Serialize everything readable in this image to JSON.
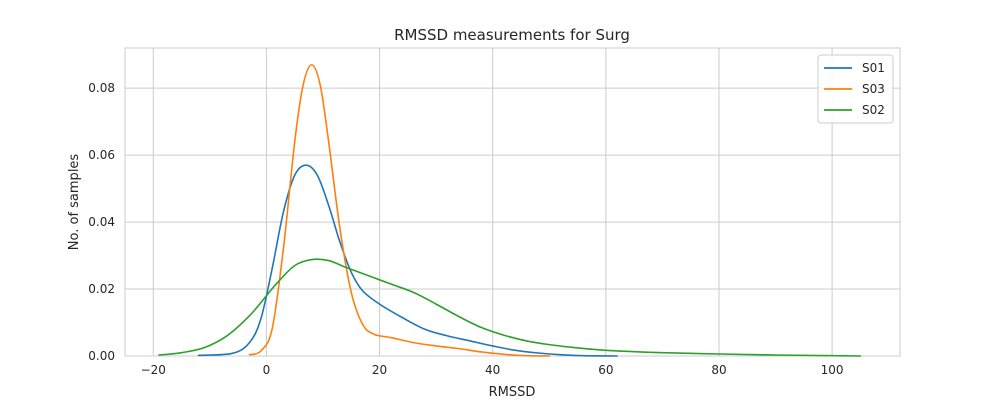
{
  "chart_data": {
    "type": "line",
    "title": "RMSSD measurements for Surg",
    "xlabel": "RMSSD",
    "ylabel": "No. of samples",
    "xlim": [
      -25,
      112
    ],
    "ylim": [
      0,
      0.092
    ],
    "xticks": [
      -20,
      0,
      20,
      40,
      60,
      80,
      100
    ],
    "xtick_labels": [
      "−20",
      "0",
      "20",
      "40",
      "60",
      "80",
      "100"
    ],
    "yticks": [
      0,
      0.02,
      0.04,
      0.06,
      0.08
    ],
    "ytick_labels": [
      "0.00",
      "0.02",
      "0.04",
      "0.06",
      "0.08"
    ],
    "grid": true,
    "legend_position": "top-right",
    "series": [
      {
        "name": "S01",
        "color": "#1f77b4",
        "points": [
          [
            -12,
            0.0002
          ],
          [
            -6,
            0.0008
          ],
          [
            -3,
            0.004
          ],
          [
            -1,
            0.011
          ],
          [
            1,
            0.026
          ],
          [
            3,
            0.043
          ],
          [
            5,
            0.054
          ],
          [
            7,
            0.057
          ],
          [
            9,
            0.054
          ],
          [
            11,
            0.045
          ],
          [
            13,
            0.034
          ],
          [
            15,
            0.025
          ],
          [
            17,
            0.0195
          ],
          [
            20,
            0.0155
          ],
          [
            24,
            0.0115
          ],
          [
            28,
            0.008
          ],
          [
            32,
            0.006
          ],
          [
            36,
            0.0045
          ],
          [
            40,
            0.003
          ],
          [
            44,
            0.0017
          ],
          [
            48,
            0.0009
          ],
          [
            52,
            0.0004
          ],
          [
            56,
            0.0001
          ],
          [
            62,
            0.0
          ]
        ]
      },
      {
        "name": "S03",
        "color": "#ff7f0e",
        "points": [
          [
            -3,
            0.0004
          ],
          [
            -1,
            0.0015
          ],
          [
            1,
            0.008
          ],
          [
            3,
            0.032
          ],
          [
            5,
            0.064
          ],
          [
            6.5,
            0.081
          ],
          [
            8,
            0.087
          ],
          [
            9.5,
            0.081
          ],
          [
            11,
            0.064
          ],
          [
            13,
            0.038
          ],
          [
            15,
            0.019
          ],
          [
            17,
            0.0095
          ],
          [
            19,
            0.0065
          ],
          [
            22,
            0.0055
          ],
          [
            26,
            0.004
          ],
          [
            30,
            0.003
          ],
          [
            34,
            0.0022
          ],
          [
            38,
            0.0012
          ],
          [
            42,
            0.0005
          ],
          [
            46,
            0.0001
          ],
          [
            50,
            0.0
          ]
        ]
      },
      {
        "name": "S02",
        "color": "#2ca02c",
        "points": [
          [
            -19,
            0.0003
          ],
          [
            -15,
            0.001
          ],
          [
            -11,
            0.0025
          ],
          [
            -7,
            0.006
          ],
          [
            -3,
            0.012
          ],
          [
            0,
            0.018
          ],
          [
            2,
            0.022
          ],
          [
            5,
            0.027
          ],
          [
            8,
            0.0288
          ],
          [
            11,
            0.0285
          ],
          [
            14,
            0.0265
          ],
          [
            18,
            0.024
          ],
          [
            22,
            0.0215
          ],
          [
            26,
            0.019
          ],
          [
            30,
            0.0155
          ],
          [
            34,
            0.0118
          ],
          [
            38,
            0.0085
          ],
          [
            42,
            0.0062
          ],
          [
            46,
            0.0045
          ],
          [
            50,
            0.0034
          ],
          [
            55,
            0.0024
          ],
          [
            60,
            0.0017
          ],
          [
            65,
            0.0013
          ],
          [
            70,
            0.001
          ],
          [
            80,
            0.0006
          ],
          [
            90,
            0.0003
          ],
          [
            100,
            0.0001
          ],
          [
            105,
            0.0
          ]
        ]
      }
    ]
  }
}
